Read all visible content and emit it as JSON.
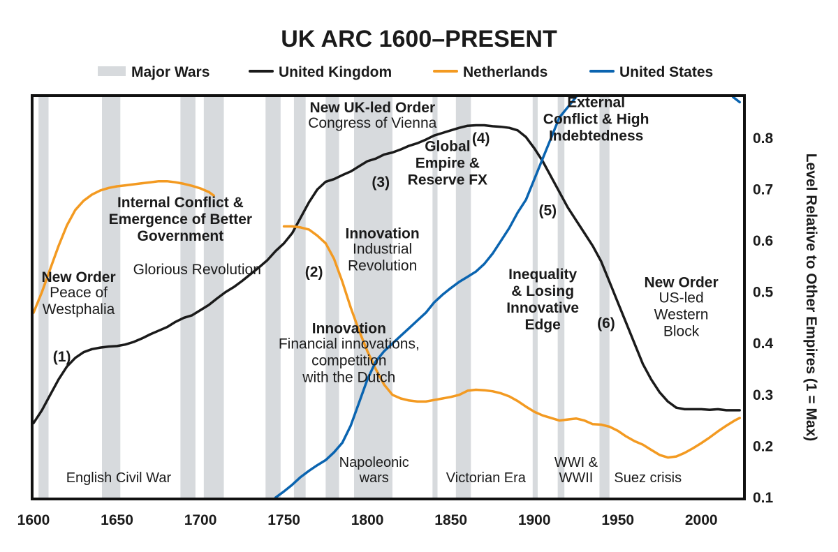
{
  "colors": {
    "war_band": "#d7dadd",
    "uk": "#1a1a1a",
    "netherlands": "#f39a21",
    "us": "#0a64b0",
    "frame": "#111111"
  },
  "chart_data": {
    "type": "line",
    "title": "UK ARC 1600–PRESENT",
    "ylabel": "Level Relative to Other Empires (1 = Max)",
    "xlim": [
      1600,
      2025
    ],
    "ylim": [
      0.1,
      0.88
    ],
    "xticks": [
      1600,
      1650,
      1700,
      1750,
      1800,
      1850,
      1900,
      1950,
      2000
    ],
    "yticks": [
      "0.1",
      "0.2",
      "0.3",
      "0.4",
      "0.5",
      "0.6",
      "0.7",
      "0.8"
    ],
    "y_axis_side": "right",
    "legend": {
      "placement": "top",
      "entries": [
        {
          "label": "Major Wars",
          "key": "war_band",
          "kind": "band"
        },
        {
          "label": "United Kingdom",
          "key": "uk",
          "kind": "line"
        },
        {
          "label": "Netherlands",
          "key": "netherlands",
          "kind": "line"
        },
        {
          "label": "United States",
          "key": "us",
          "kind": "line"
        }
      ]
    },
    "war_periods": [
      [
        1603,
        1609
      ],
      [
        1641,
        1652
      ],
      [
        1688,
        1697
      ],
      [
        1702,
        1714
      ],
      [
        1739,
        1748
      ],
      [
        1756,
        1763
      ],
      [
        1775,
        1783
      ],
      [
        1792,
        1815
      ],
      [
        1839,
        1842
      ],
      [
        1853,
        1862
      ],
      [
        1899,
        1902
      ],
      [
        1914,
        1918
      ],
      [
        1939,
        1945
      ]
    ],
    "series": [
      {
        "name": "United Kingdom",
        "key": "uk",
        "points": [
          [
            1600,
            0.245
          ],
          [
            1605,
            0.27
          ],
          [
            1610,
            0.3
          ],
          [
            1615,
            0.33
          ],
          [
            1620,
            0.355
          ],
          [
            1625,
            0.372
          ],
          [
            1630,
            0.383
          ],
          [
            1635,
            0.389
          ],
          [
            1640,
            0.392
          ],
          [
            1645,
            0.394
          ],
          [
            1650,
            0.395
          ],
          [
            1655,
            0.398
          ],
          [
            1660,
            0.403
          ],
          [
            1665,
            0.41
          ],
          [
            1670,
            0.418
          ],
          [
            1675,
            0.425
          ],
          [
            1680,
            0.432
          ],
          [
            1685,
            0.442
          ],
          [
            1690,
            0.45
          ],
          [
            1695,
            0.455
          ],
          [
            1700,
            0.465
          ],
          [
            1705,
            0.475
          ],
          [
            1710,
            0.488
          ],
          [
            1715,
            0.5
          ],
          [
            1720,
            0.51
          ],
          [
            1725,
            0.522
          ],
          [
            1730,
            0.535
          ],
          [
            1735,
            0.548
          ],
          [
            1740,
            0.562
          ],
          [
            1745,
            0.58
          ],
          [
            1750,
            0.595
          ],
          [
            1755,
            0.615
          ],
          [
            1760,
            0.645
          ],
          [
            1765,
            0.675
          ],
          [
            1770,
            0.7
          ],
          [
            1775,
            0.715
          ],
          [
            1780,
            0.72
          ],
          [
            1785,
            0.728
          ],
          [
            1790,
            0.735
          ],
          [
            1795,
            0.745
          ],
          [
            1800,
            0.755
          ],
          [
            1805,
            0.76
          ],
          [
            1810,
            0.768
          ],
          [
            1815,
            0.772
          ],
          [
            1820,
            0.778
          ],
          [
            1825,
            0.785
          ],
          [
            1830,
            0.79
          ],
          [
            1835,
            0.797
          ],
          [
            1840,
            0.805
          ],
          [
            1845,
            0.81
          ],
          [
            1850,
            0.815
          ],
          [
            1855,
            0.82
          ],
          [
            1860,
            0.824
          ],
          [
            1865,
            0.825
          ],
          [
            1870,
            0.825
          ],
          [
            1875,
            0.823
          ],
          [
            1880,
            0.822
          ],
          [
            1885,
            0.82
          ],
          [
            1890,
            0.815
          ],
          [
            1895,
            0.802
          ],
          [
            1900,
            0.78
          ],
          [
            1905,
            0.755
          ],
          [
            1910,
            0.725
          ],
          [
            1915,
            0.695
          ],
          [
            1920,
            0.665
          ],
          [
            1925,
            0.64
          ],
          [
            1930,
            0.615
          ],
          [
            1935,
            0.59
          ],
          [
            1940,
            0.56
          ],
          [
            1945,
            0.52
          ],
          [
            1950,
            0.48
          ],
          [
            1955,
            0.44
          ],
          [
            1960,
            0.4
          ],
          [
            1965,
            0.36
          ],
          [
            1970,
            0.33
          ],
          [
            1975,
            0.305
          ],
          [
            1980,
            0.287
          ],
          [
            1985,
            0.275
          ],
          [
            1990,
            0.272
          ],
          [
            1995,
            0.272
          ],
          [
            2000,
            0.272
          ],
          [
            2005,
            0.271
          ],
          [
            2010,
            0.272
          ],
          [
            2015,
            0.27
          ],
          [
            2020,
            0.27
          ],
          [
            2023,
            0.27
          ]
        ]
      },
      {
        "name": "Netherlands",
        "key": "netherlands",
        "points": [
          [
            1600,
            0.46
          ],
          [
            1605,
            0.5
          ],
          [
            1610,
            0.545
          ],
          [
            1615,
            0.59
          ],
          [
            1620,
            0.63
          ],
          [
            1625,
            0.66
          ],
          [
            1630,
            0.678
          ],
          [
            1635,
            0.69
          ],
          [
            1640,
            0.698
          ],
          [
            1645,
            0.703
          ],
          [
            1650,
            0.706
          ],
          [
            1655,
            0.708
          ],
          [
            1660,
            0.71
          ],
          [
            1665,
            0.712
          ],
          [
            1670,
            0.714
          ],
          [
            1675,
            0.716
          ],
          [
            1680,
            0.716
          ],
          [
            1685,
            0.714
          ],
          [
            1690,
            0.711
          ],
          [
            1695,
            0.707
          ],
          [
            1700,
            0.702
          ],
          [
            1705,
            0.695
          ],
          [
            1708,
            0.688
          ]
        ]
      },
      {
        "name": "Netherlands (decline)",
        "key": "netherlands",
        "points": [
          [
            1750,
            0.628
          ],
          [
            1755,
            0.628
          ],
          [
            1760,
            0.626
          ],
          [
            1765,
            0.622
          ],
          [
            1770,
            0.61
          ],
          [
            1775,
            0.595
          ],
          [
            1780,
            0.565
          ],
          [
            1785,
            0.52
          ],
          [
            1790,
            0.47
          ],
          [
            1795,
            0.425
          ],
          [
            1800,
            0.385
          ],
          [
            1805,
            0.35
          ],
          [
            1810,
            0.32
          ],
          [
            1815,
            0.3
          ],
          [
            1820,
            0.293
          ],
          [
            1825,
            0.289
          ],
          [
            1830,
            0.287
          ],
          [
            1835,
            0.287
          ],
          [
            1840,
            0.29
          ],
          [
            1845,
            0.293
          ],
          [
            1850,
            0.296
          ],
          [
            1855,
            0.3
          ],
          [
            1860,
            0.308
          ],
          [
            1865,
            0.31
          ],
          [
            1870,
            0.309
          ],
          [
            1875,
            0.307
          ],
          [
            1880,
            0.303
          ],
          [
            1885,
            0.297
          ],
          [
            1890,
            0.288
          ],
          [
            1895,
            0.277
          ],
          [
            1900,
            0.267
          ],
          [
            1905,
            0.26
          ],
          [
            1910,
            0.255
          ],
          [
            1915,
            0.25
          ],
          [
            1920,
            0.252
          ],
          [
            1925,
            0.254
          ],
          [
            1930,
            0.25
          ],
          [
            1935,
            0.243
          ],
          [
            1940,
            0.242
          ],
          [
            1945,
            0.238
          ],
          [
            1950,
            0.23
          ],
          [
            1955,
            0.219
          ],
          [
            1960,
            0.21
          ],
          [
            1965,
            0.203
          ],
          [
            1970,
            0.193
          ],
          [
            1975,
            0.183
          ],
          [
            1980,
            0.178
          ],
          [
            1985,
            0.18
          ],
          [
            1990,
            0.187
          ],
          [
            1995,
            0.196
          ],
          [
            2000,
            0.206
          ],
          [
            2005,
            0.217
          ],
          [
            2010,
            0.229
          ],
          [
            2015,
            0.24
          ],
          [
            2020,
            0.25
          ],
          [
            2023,
            0.255
          ]
        ]
      },
      {
        "name": "United States",
        "key": "us",
        "points": [
          [
            1745,
            0.1
          ],
          [
            1750,
            0.112
          ],
          [
            1755,
            0.125
          ],
          [
            1760,
            0.14
          ],
          [
            1765,
            0.152
          ],
          [
            1770,
            0.163
          ],
          [
            1775,
            0.173
          ],
          [
            1780,
            0.188
          ],
          [
            1785,
            0.207
          ],
          [
            1790,
            0.24
          ],
          [
            1795,
            0.285
          ],
          [
            1800,
            0.33
          ],
          [
            1805,
            0.365
          ],
          [
            1810,
            0.385
          ],
          [
            1815,
            0.4
          ],
          [
            1820,
            0.415
          ],
          [
            1825,
            0.43
          ],
          [
            1830,
            0.445
          ],
          [
            1835,
            0.46
          ],
          [
            1840,
            0.48
          ],
          [
            1845,
            0.495
          ],
          [
            1850,
            0.508
          ],
          [
            1855,
            0.52
          ],
          [
            1860,
            0.53
          ],
          [
            1865,
            0.54
          ],
          [
            1870,
            0.555
          ],
          [
            1875,
            0.575
          ],
          [
            1880,
            0.6
          ],
          [
            1885,
            0.625
          ],
          [
            1890,
            0.655
          ],
          [
            1895,
            0.68
          ],
          [
            1900,
            0.72
          ],
          [
            1905,
            0.76
          ],
          [
            1910,
            0.8
          ],
          [
            1915,
            0.84
          ],
          [
            1920,
            0.86
          ],
          [
            1925,
            0.88
          ]
        ]
      },
      {
        "name": "United States (late)",
        "key": "us",
        "points": [
          [
            2019,
            0.88
          ],
          [
            2023,
            0.87
          ]
        ]
      }
    ],
    "annotations": {
      "bold": [
        {
          "id": "new-order-westphalia",
          "year": 1627,
          "y": 0.52,
          "lines": [
            "New Order"
          ]
        },
        {
          "id": "internal-conflict",
          "year": 1688,
          "y": 0.665,
          "lines": [
            "Internal Conflict &",
            "Emergence of Better",
            "Government"
          ]
        },
        {
          "id": "new-uk-order",
          "year": 1803,
          "y": 0.85,
          "lines": [
            "New UK-led Order"
          ]
        },
        {
          "id": "innovation-financial",
          "year": 1789,
          "y": 0.42,
          "lines": [
            "Innovation"
          ]
        },
        {
          "id": "innovation-industrial",
          "year": 1809,
          "y": 0.605,
          "lines": [
            "Innovation"
          ]
        },
        {
          "id": "global-empire",
          "year": 1848,
          "y": 0.775,
          "lines": [
            "Global",
            "Empire &",
            "Reserve FX"
          ]
        },
        {
          "id": "external-conflict",
          "year": 1937,
          "y": 0.86,
          "lines": [
            "External",
            "Conflict & High",
            "Indebtedness"
          ]
        },
        {
          "id": "inequality",
          "year": 1905,
          "y": 0.525,
          "lines": [
            "Inequality",
            "& Losing",
            "Innovative",
            "Edge"
          ]
        },
        {
          "id": "new-order-us",
          "year": 1988,
          "y": 0.51,
          "lines": [
            "New Order"
          ]
        }
      ],
      "normal": [
        {
          "id": "peace-of-westphalia",
          "year": 1627,
          "y": 0.49,
          "lines": [
            "Peace of",
            "Westphalia"
          ]
        },
        {
          "id": "glorious-revolution",
          "year": 1698,
          "y": 0.535,
          "lines": [
            "Glorious Revolution"
          ]
        },
        {
          "id": "congress-vienna",
          "year": 1803,
          "y": 0.82,
          "lines": [
            "Congress of Vienna"
          ]
        },
        {
          "id": "financial-innovations",
          "year": 1789,
          "y": 0.39,
          "lines": [
            "Financial innovations,",
            "competition",
            "with the Dutch"
          ]
        },
        {
          "id": "industrial-revolution",
          "year": 1809,
          "y": 0.575,
          "lines": [
            "Industrial",
            "Revolution"
          ]
        },
        {
          "id": "us-led-block",
          "year": 1988,
          "y": 0.48,
          "lines": [
            "US-led",
            "Western",
            "Block"
          ]
        }
      ],
      "stages": [
        {
          "label": "(1)",
          "year": 1617,
          "y": 0.365
        },
        {
          "label": "(2)",
          "year": 1768,
          "y": 0.53
        },
        {
          "label": "(3)",
          "year": 1808,
          "y": 0.705
        },
        {
          "label": "(4)",
          "year": 1868,
          "y": 0.79
        },
        {
          "label": "(5)",
          "year": 1908,
          "y": 0.65
        },
        {
          "label": "(6)",
          "year": 1943,
          "y": 0.43
        }
      ],
      "wars": [
        {
          "label": "English Civil War",
          "year": 1651,
          "y": 0.13
        },
        {
          "label": "Napoleonic",
          "year": 1804,
          "y": 0.16
        },
        {
          "label": "wars",
          "year": 1804,
          "y": 0.13
        },
        {
          "label": "Victorian Era",
          "year": 1871,
          "y": 0.13
        },
        {
          "label": "WWI &",
          "year": 1925,
          "y": 0.16
        },
        {
          "label": "WWII",
          "year": 1925,
          "y": 0.13
        },
        {
          "label": "Suez crisis",
          "year": 1968,
          "y": 0.13
        }
      ]
    }
  }
}
